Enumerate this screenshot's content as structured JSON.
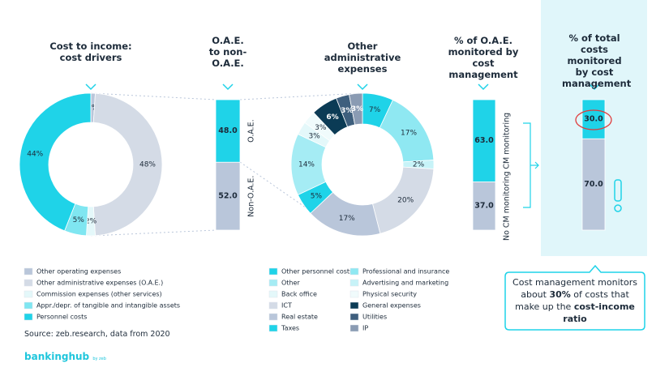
{
  "chart_data": [
    {
      "type": "donut",
      "title": "Cost to income: cost drivers",
      "categories": [
        "Other operating expenses",
        "Other administrative expenses (O.A.E.)",
        "Commission expenses (other services)",
        "Appr./depr. of tangible and intangible assets",
        "Personnel costs"
      ],
      "values": [
        1,
        48,
        2,
        5,
        44
      ],
      "value_labels": [
        "1%",
        "48%",
        "2%",
        "5%",
        "44%"
      ],
      "colors": [
        "#b9c6da",
        "#d4dbe6",
        "#e4f8fa",
        "#7fe6f1",
        "#1fd3e8"
      ]
    },
    {
      "type": "stacked-bar",
      "title": "O.A.E. to non-O.A.E.",
      "ylim": [
        0,
        100
      ],
      "series": [
        {
          "name": "O.A.E.",
          "color": "#1fd3e8",
          "values": [
            48
          ],
          "value_labels": [
            "48.0"
          ]
        },
        {
          "name": "Non-O.A.E.",
          "color": "#b9c6da",
          "values": [
            52
          ],
          "value_labels": [
            "52.0"
          ]
        }
      ]
    },
    {
      "type": "donut",
      "title": "Other administrative expenses",
      "categories": [
        "Other personnel costs",
        "Professional and insurance",
        "Advertising and marketing",
        "ICT",
        "Real estate",
        "Taxes",
        "Other",
        "Back office",
        "Physical security",
        "General expenses",
        "Utilities",
        "IP"
      ],
      "values": [
        7,
        17,
        2,
        20,
        17,
        5,
        14,
        3,
        3,
        6,
        3,
        3
      ],
      "value_labels": [
        "7%",
        "17%",
        "2%",
        "20%",
        "17%",
        "5%",
        "14%",
        "3%",
        "3%",
        "6%",
        "3%",
        "3%"
      ],
      "colors": [
        "#1fd3e8",
        "#8fe8f2",
        "#c7f3f8",
        "#d4dbe6",
        "#b9c6da",
        "#1fd3e8",
        "#a5ecf4",
        "#e4f8fa",
        "#f0fbfc",
        "#0b3b55",
        "#3e5f7d",
        "#8a9bb3"
      ]
    },
    {
      "type": "stacked-bar",
      "title": "% of O.A.E. monitored by cost management",
      "ylim": [
        0,
        100
      ],
      "series": [
        {
          "name": "CM monitoring",
          "color": "#1fd3e8",
          "values": [
            63
          ],
          "value_labels": [
            "63.0"
          ]
        },
        {
          "name": "No CM monitoring",
          "color": "#b9c6da",
          "values": [
            37
          ],
          "value_labels": [
            "37.0"
          ]
        }
      ]
    },
    {
      "type": "stacked-bar",
      "title": "% of total costs monitored by cost management",
      "ylim": [
        0,
        100
      ],
      "series": [
        {
          "color": "#1fd3e8",
          "values": [
            30
          ],
          "value_labels": [
            "30.0"
          ]
        },
        {
          "color": "#b9c6da",
          "values": [
            70
          ],
          "value_labels": [
            "70.0"
          ]
        }
      ]
    }
  ],
  "callout": [
    "Cost management monitors about ",
    "30%",
    " of costs that make up the ",
    "cost-income ratio"
  ],
  "source": "Source: zeb.research, data from 2020",
  "brand": {
    "name": "bankinghub",
    "by": "by zeb"
  }
}
